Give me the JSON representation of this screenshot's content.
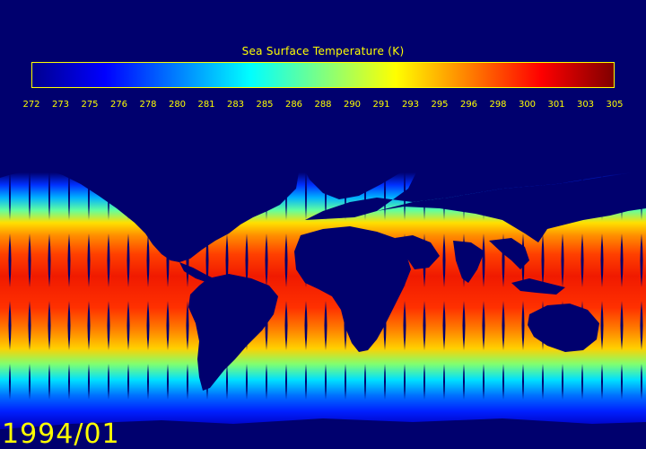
{
  "colorbar": {
    "title": "Sea Surface Temperature (K)",
    "ticks": [
      "272",
      "273",
      "275",
      "276",
      "278",
      "280",
      "281",
      "283",
      "285",
      "286",
      "288",
      "290",
      "291",
      "293",
      "295",
      "296",
      "298",
      "300",
      "301",
      "303",
      "305"
    ],
    "range": [
      272,
      305
    ],
    "colormap": [
      "#00008f",
      "#0000ff",
      "#0080ff",
      "#00ffff",
      "#80ff80",
      "#ffff00",
      "#ff8000",
      "#ff0000",
      "#800000"
    ]
  },
  "map": {
    "background_color": "#00006e",
    "land_color": "#00006e"
  },
  "date_label": "1994/01"
}
